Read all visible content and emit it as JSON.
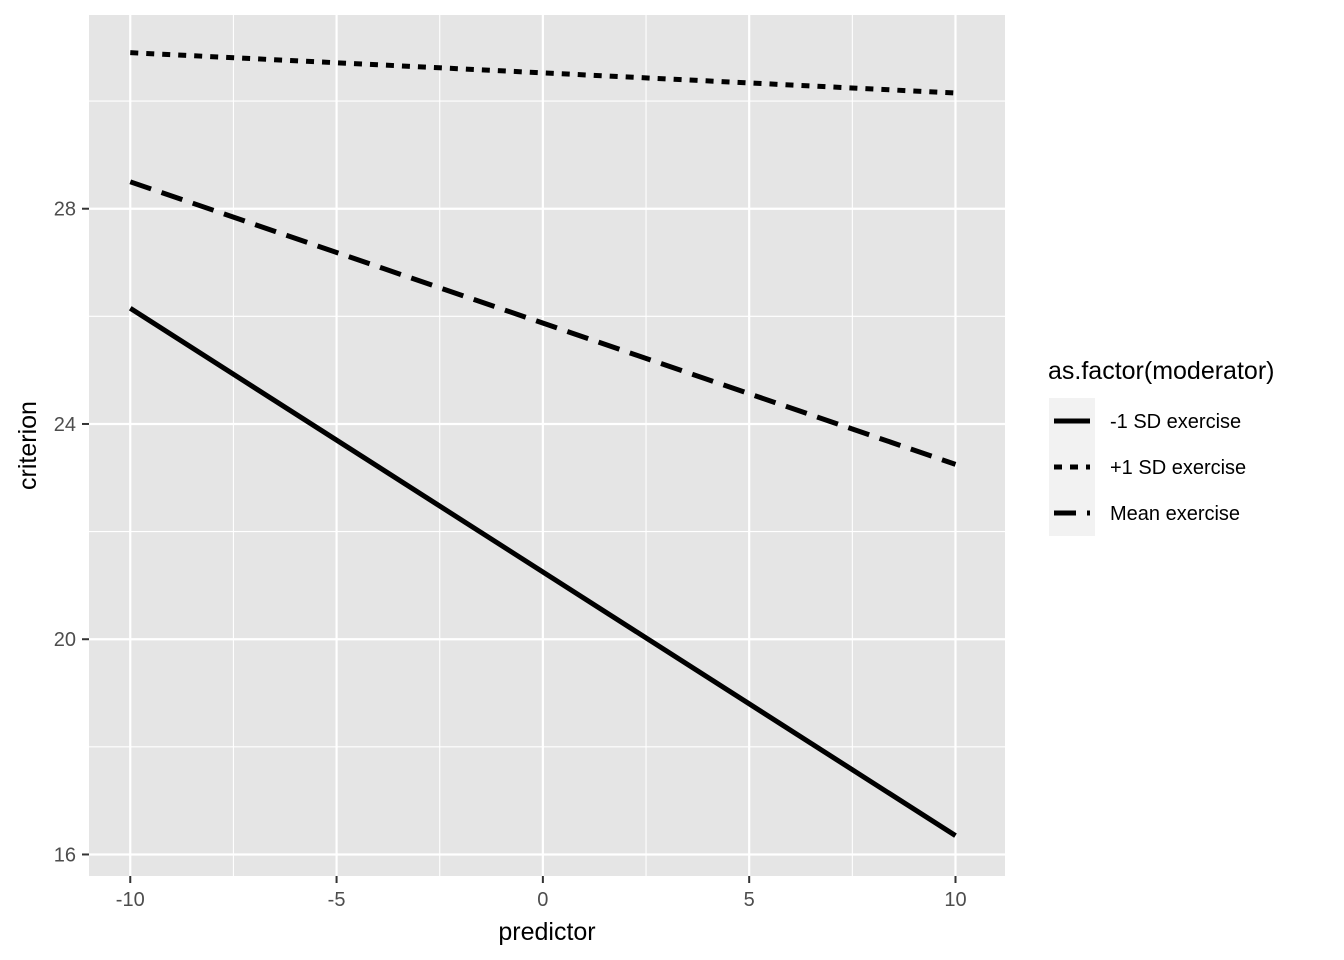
{
  "chart_data": {
    "type": "line",
    "xlabel": "predictor",
    "ylabel": "criterion",
    "xlim": [
      -11,
      11.2
    ],
    "ylim": [
      15.6,
      31.6
    ],
    "x_ticks": [
      -10,
      -5,
      0,
      5,
      10
    ],
    "x_tick_labels": [
      "-10",
      "-5",
      "0",
      "5",
      "10"
    ],
    "y_ticks": [
      16,
      20,
      24,
      28
    ],
    "y_tick_labels": [
      "16",
      "20",
      "24",
      "28"
    ],
    "grid": true,
    "legend": {
      "title": "as.factor(moderator)",
      "placement": "right"
    },
    "series": [
      {
        "name": "-1 SD exercise",
        "line_style": "solid",
        "x": [
          -10,
          10
        ],
        "y": [
          26.15,
          16.35
        ]
      },
      {
        "name": "+1 SD exercise",
        "line_style": "dotted",
        "x": [
          -10,
          10
        ],
        "y": [
          30.9,
          30.15
        ]
      },
      {
        "name": "Mean exercise",
        "line_style": "dashed",
        "x": [
          -10,
          10
        ],
        "y": [
          28.5,
          23.25
        ]
      }
    ],
    "colors": {
      "panel": "#e5e5e5",
      "grid": "#ffffff",
      "line": "#000000",
      "tick_text": "#4d4d4d",
      "legend_key": "#f2f2f2"
    }
  }
}
